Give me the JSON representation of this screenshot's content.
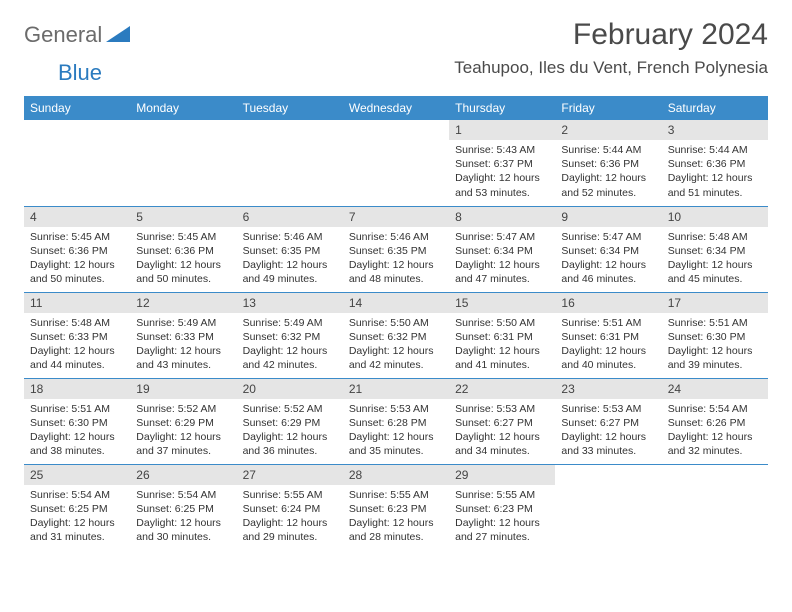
{
  "logo": {
    "text1": "General",
    "text2": "Blue"
  },
  "title": "February 2024",
  "location": "Teahupoo, Iles du Vent, French Polynesia",
  "colors": {
    "header_bg": "#3b8bc9",
    "header_text": "#ffffff",
    "daynum_bg": "#e5e5e5",
    "row_border": "#3b8bc9",
    "logo_gray": "#6b6b6b",
    "logo_blue": "#2b7bbf"
  },
  "day_headers": [
    "Sunday",
    "Monday",
    "Tuesday",
    "Wednesday",
    "Thursday",
    "Friday",
    "Saturday"
  ],
  "weeks": [
    [
      null,
      null,
      null,
      null,
      {
        "n": "1",
        "sr": "5:43 AM",
        "ss": "6:37 PM",
        "dl": "12 hours and 53 minutes."
      },
      {
        "n": "2",
        "sr": "5:44 AM",
        "ss": "6:36 PM",
        "dl": "12 hours and 52 minutes."
      },
      {
        "n": "3",
        "sr": "5:44 AM",
        "ss": "6:36 PM",
        "dl": "12 hours and 51 minutes."
      }
    ],
    [
      {
        "n": "4",
        "sr": "5:45 AM",
        "ss": "6:36 PM",
        "dl": "12 hours and 50 minutes."
      },
      {
        "n": "5",
        "sr": "5:45 AM",
        "ss": "6:36 PM",
        "dl": "12 hours and 50 minutes."
      },
      {
        "n": "6",
        "sr": "5:46 AM",
        "ss": "6:35 PM",
        "dl": "12 hours and 49 minutes."
      },
      {
        "n": "7",
        "sr": "5:46 AM",
        "ss": "6:35 PM",
        "dl": "12 hours and 48 minutes."
      },
      {
        "n": "8",
        "sr": "5:47 AM",
        "ss": "6:34 PM",
        "dl": "12 hours and 47 minutes."
      },
      {
        "n": "9",
        "sr": "5:47 AM",
        "ss": "6:34 PM",
        "dl": "12 hours and 46 minutes."
      },
      {
        "n": "10",
        "sr": "5:48 AM",
        "ss": "6:34 PM",
        "dl": "12 hours and 45 minutes."
      }
    ],
    [
      {
        "n": "11",
        "sr": "5:48 AM",
        "ss": "6:33 PM",
        "dl": "12 hours and 44 minutes."
      },
      {
        "n": "12",
        "sr": "5:49 AM",
        "ss": "6:33 PM",
        "dl": "12 hours and 43 minutes."
      },
      {
        "n": "13",
        "sr": "5:49 AM",
        "ss": "6:32 PM",
        "dl": "12 hours and 42 minutes."
      },
      {
        "n": "14",
        "sr": "5:50 AM",
        "ss": "6:32 PM",
        "dl": "12 hours and 42 minutes."
      },
      {
        "n": "15",
        "sr": "5:50 AM",
        "ss": "6:31 PM",
        "dl": "12 hours and 41 minutes."
      },
      {
        "n": "16",
        "sr": "5:51 AM",
        "ss": "6:31 PM",
        "dl": "12 hours and 40 minutes."
      },
      {
        "n": "17",
        "sr": "5:51 AM",
        "ss": "6:30 PM",
        "dl": "12 hours and 39 minutes."
      }
    ],
    [
      {
        "n": "18",
        "sr": "5:51 AM",
        "ss": "6:30 PM",
        "dl": "12 hours and 38 minutes."
      },
      {
        "n": "19",
        "sr": "5:52 AM",
        "ss": "6:29 PM",
        "dl": "12 hours and 37 minutes."
      },
      {
        "n": "20",
        "sr": "5:52 AM",
        "ss": "6:29 PM",
        "dl": "12 hours and 36 minutes."
      },
      {
        "n": "21",
        "sr": "5:53 AM",
        "ss": "6:28 PM",
        "dl": "12 hours and 35 minutes."
      },
      {
        "n": "22",
        "sr": "5:53 AM",
        "ss": "6:27 PM",
        "dl": "12 hours and 34 minutes."
      },
      {
        "n": "23",
        "sr": "5:53 AM",
        "ss": "6:27 PM",
        "dl": "12 hours and 33 minutes."
      },
      {
        "n": "24",
        "sr": "5:54 AM",
        "ss": "6:26 PM",
        "dl": "12 hours and 32 minutes."
      }
    ],
    [
      {
        "n": "25",
        "sr": "5:54 AM",
        "ss": "6:25 PM",
        "dl": "12 hours and 31 minutes."
      },
      {
        "n": "26",
        "sr": "5:54 AM",
        "ss": "6:25 PM",
        "dl": "12 hours and 30 minutes."
      },
      {
        "n": "27",
        "sr": "5:55 AM",
        "ss": "6:24 PM",
        "dl": "12 hours and 29 minutes."
      },
      {
        "n": "28",
        "sr": "5:55 AM",
        "ss": "6:23 PM",
        "dl": "12 hours and 28 minutes."
      },
      {
        "n": "29",
        "sr": "5:55 AM",
        "ss": "6:23 PM",
        "dl": "12 hours and 27 minutes."
      },
      null,
      null
    ]
  ],
  "labels": {
    "sunrise": "Sunrise:",
    "sunset": "Sunset:",
    "daylight": "Daylight:"
  }
}
